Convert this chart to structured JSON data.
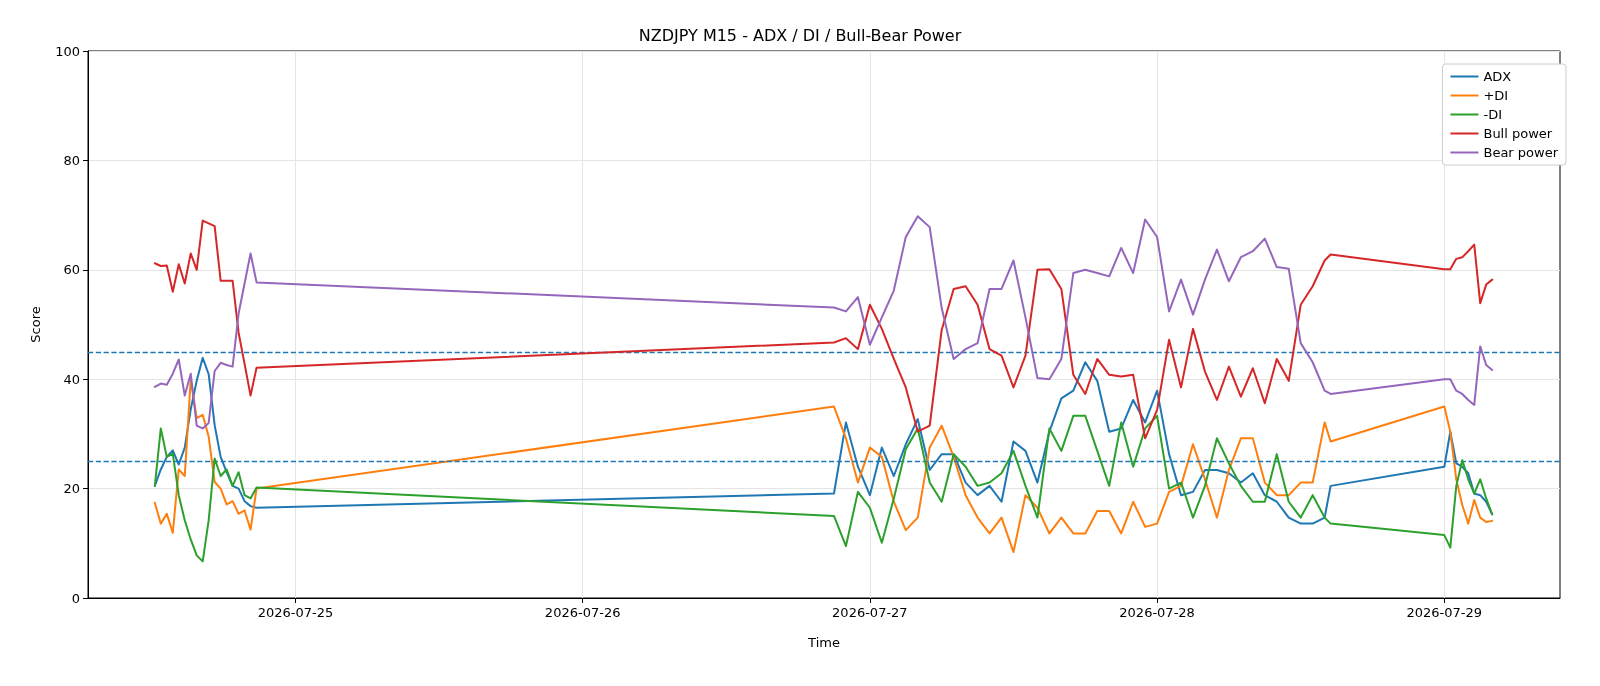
{
  "chart_data": {
    "type": "line",
    "title": "NZDJPY M15 - ADX / DI / Bull-Bear Power",
    "xlabel": "Time",
    "ylabel": "Score",
    "x": [
      "2026-07-24T12:15",
      "2026-07-24T12:45",
      "2026-07-24T13:15",
      "2026-07-24T13:45",
      "2026-07-24T14:15",
      "2026-07-24T14:45",
      "2026-07-24T15:15",
      "2026-07-24T15:45",
      "2026-07-24T16:15",
      "2026-07-24T16:45",
      "2026-07-24T17:15",
      "2026-07-24T17:45",
      "2026-07-24T18:15",
      "2026-07-24T18:45",
      "2026-07-24T19:15",
      "2026-07-24T19:45",
      "2026-07-24T20:15",
      "2026-07-24T20:45",
      "2026-07-26T21:00",
      "2026-07-26T22:00",
      "2026-07-26T23:00",
      "2026-07-27T00:00",
      "2026-07-27T01:00",
      "2026-07-27T02:00",
      "2026-07-27T03:00",
      "2026-07-27T04:00",
      "2026-07-27T05:00",
      "2026-07-27T06:00",
      "2026-07-27T07:00",
      "2026-07-27T08:00",
      "2026-07-27T09:00",
      "2026-07-27T10:00",
      "2026-07-27T11:00",
      "2026-07-27T12:00",
      "2026-07-27T13:00",
      "2026-07-27T14:00",
      "2026-07-27T15:00",
      "2026-07-27T16:00",
      "2026-07-27T17:00",
      "2026-07-27T18:00",
      "2026-07-27T19:00",
      "2026-07-27T20:00",
      "2026-07-27T21:00",
      "2026-07-27T22:00",
      "2026-07-27T23:00",
      "2026-07-28T00:00",
      "2026-07-28T01:00",
      "2026-07-28T02:00",
      "2026-07-28T03:00",
      "2026-07-28T04:00",
      "2026-07-28T05:00",
      "2026-07-28T06:00",
      "2026-07-28T07:00",
      "2026-07-28T08:00",
      "2026-07-28T09:00",
      "2026-07-28T10:00",
      "2026-07-28T11:00",
      "2026-07-28T12:00",
      "2026-07-28T13:00",
      "2026-07-28T14:00",
      "2026-07-28T14:30",
      "2026-07-29T00:00",
      "2026-07-29T00:30",
      "2026-07-29T01:00",
      "2026-07-29T01:30",
      "2026-07-29T02:00",
      "2026-07-29T02:30",
      "2026-07-29T03:00",
      "2026-07-29T03:30",
      "2026-07-29T04:00"
    ],
    "series": [
      {
        "name": "ADX",
        "color": "#1f77b4",
        "values": [
          20.5,
          23.5,
          25.8,
          27,
          24.4,
          27.5,
          34.5,
          39.7,
          43.9,
          40.9,
          31.6,
          25.8,
          23,
          20.5,
          20,
          17.7,
          16.8,
          16.5,
          19.1,
          32.1,
          24,
          18.8,
          27.5,
          22.3,
          28.1,
          32.7,
          23.4,
          26.3,
          26.3,
          21.1,
          18.8,
          20.5,
          17.6,
          28.6,
          26.9,
          21.1,
          30.4,
          36.5,
          37.9,
          43.1,
          39.7,
          30.4,
          31,
          36.2,
          32.1,
          37.9,
          26.3,
          18.8,
          19.4,
          23.4,
          23.4,
          22.8,
          21.1,
          22.8,
          18.8,
          17.6,
          14.7,
          13.6,
          13.6,
          14.7,
          20.5,
          24,
          30.4,
          24.6,
          24,
          22.8,
          19.1,
          18.8,
          17.6,
          15.3
        ]
      },
      {
        "name": "+DI",
        "color": "#ff7f0e",
        "values": [
          17.4,
          13.6,
          15.4,
          11.9,
          23.5,
          22.3,
          40,
          32.9,
          33.5,
          29.5,
          21.2,
          20,
          17.1,
          17.7,
          15.4,
          16,
          12.5,
          20,
          35,
          29.2,
          21.1,
          27.5,
          25.8,
          17.6,
          12.4,
          14.7,
          27.5,
          31.5,
          25.8,
          18.8,
          14.7,
          11.8,
          14.7,
          8.4,
          18.8,
          16.5,
          11.8,
          14.7,
          11.8,
          11.8,
          15.9,
          15.9,
          11.8,
          17.6,
          13,
          13.6,
          19.4,
          20.5,
          28.1,
          21.7,
          14.7,
          23.4,
          29.2,
          29.2,
          21.1,
          18.8,
          18.8,
          21.1,
          21.1,
          32.1,
          28.6,
          35,
          30.4,
          21.7,
          17,
          13.6,
          17.9,
          14.7,
          13.9,
          14.1
        ]
      },
      {
        "name": "-DI",
        "color": "#2ca02c",
        "values": [
          20.5,
          31,
          25.8,
          26.4,
          18.8,
          14.2,
          10.7,
          7.8,
          6.7,
          14.2,
          25.5,
          22.3,
          23.5,
          20.5,
          23,
          18.8,
          18.2,
          20.2,
          15,
          9.5,
          19.4,
          16.5,
          10.1,
          18.2,
          27.2,
          31,
          21.1,
          17.6,
          26.3,
          24,
          20.5,
          21.1,
          22.8,
          26.9,
          20.5,
          14.7,
          31,
          26.9,
          33.3,
          33.3,
          26.9,
          20.5,
          32.1,
          24,
          31,
          33.3,
          20,
          21.1,
          14.7,
          20.5,
          29.2,
          24.6,
          20.5,
          17.6,
          17.6,
          26.3,
          17.6,
          14.7,
          18.8,
          14.7,
          13.6,
          11.5,
          9.2,
          20.5,
          25.2,
          21.7,
          19.1,
          21.7,
          18.2,
          15.3
        ]
      },
      {
        "name": "Bull power",
        "color": "#d62728",
        "values": [
          61.2,
          60.7,
          60.8,
          56,
          61,
          57.5,
          63,
          60,
          69,
          68.5,
          68,
          58,
          58,
          58,
          48.5,
          42.8,
          37,
          42.1,
          46.7,
          47.5,
          45.5,
          53.6,
          49.2,
          43.7,
          38.5,
          30.4,
          31.5,
          49,
          56.5,
          57,
          53.6,
          45.5,
          44.3,
          38.5,
          44.3,
          60,
          60.1,
          56.5,
          40.8,
          37.3,
          43.7,
          40.8,
          40.5,
          40.8,
          29.2,
          34.4,
          47.2,
          38.5,
          49.2,
          41.4,
          36.2,
          42.3,
          36.8,
          42,
          35.6,
          43.7,
          39.7,
          53.6,
          57,
          61.7,
          62.8,
          60.1,
          60.1,
          62,
          62.3,
          63.4,
          64.6,
          53.9,
          57.3,
          58.2
        ]
      },
      {
        "name": "Bear power",
        "color": "#9467bd",
        "values": [
          38.6,
          39.2,
          39,
          41,
          43.6,
          37,
          41,
          31.5,
          31,
          32,
          41.5,
          43,
          42.6,
          42.3,
          52,
          57.5,
          63,
          57.7,
          53.1,
          52.4,
          55,
          46.3,
          51.3,
          56.2,
          66,
          69.8,
          67.8,
          53,
          43.7,
          45.5,
          46.6,
          56.5,
          56.5,
          61.7,
          51.3,
          40.2,
          40,
          43.7,
          59.4,
          60,
          59.4,
          58.8,
          64,
          59.4,
          69.2,
          66,
          52.4,
          58.2,
          51.8,
          58.2,
          63.7,
          57.9,
          62.3,
          63.4,
          65.7,
          60.5,
          60.2,
          46.6,
          43.1,
          37.9,
          37.3,
          40,
          40,
          37.9,
          37.3,
          36.2,
          35.3,
          46,
          42.6,
          41.7
        ]
      }
    ],
    "ref_lines": [
      {
        "axis": "y",
        "value": 45,
        "color": "#1f77b4",
        "line_style": "dashed"
      },
      {
        "axis": "y",
        "value": 25,
        "color": "#1f77b4",
        "line_style": "dashed"
      }
    ],
    "xlim": [
      "2026-07-24T06:40",
      "2026-07-29T09:40"
    ],
    "xticks": [
      "2026-07-25",
      "2026-07-26",
      "2026-07-27",
      "2026-07-28",
      "2026-07-29"
    ],
    "ylim": [
      0,
      100
    ],
    "yticks": [
      0,
      20,
      40,
      60,
      80,
      100
    ],
    "grid": true,
    "legend": "top right"
  }
}
